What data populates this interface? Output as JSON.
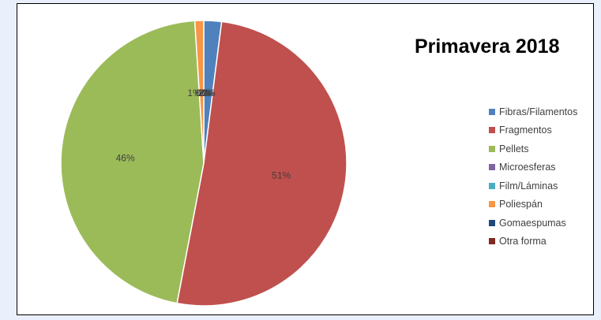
{
  "chart_data": {
    "type": "pie",
    "title": "Primavera 2018",
    "legend_position": "right",
    "categories": [
      "Fibras/Filamentos",
      "Fragmentos",
      "Pellets",
      "Microesferas",
      "Film/Láminas",
      "Poliespán",
      "Gomaespumas",
      "Otra forma"
    ],
    "values": [
      2,
      51,
      46,
      0,
      0,
      1,
      0,
      0
    ],
    "data_labels": [
      "2%",
      "51%",
      "46%",
      "0%",
      "0%",
      "1%",
      "0%",
      "0%"
    ],
    "colors": [
      "#4f81bd",
      "#c0504d",
      "#9bbb59",
      "#8064a2",
      "#4bacc6",
      "#f79646",
      "#1f497d",
      "#7f2b22"
    ]
  }
}
